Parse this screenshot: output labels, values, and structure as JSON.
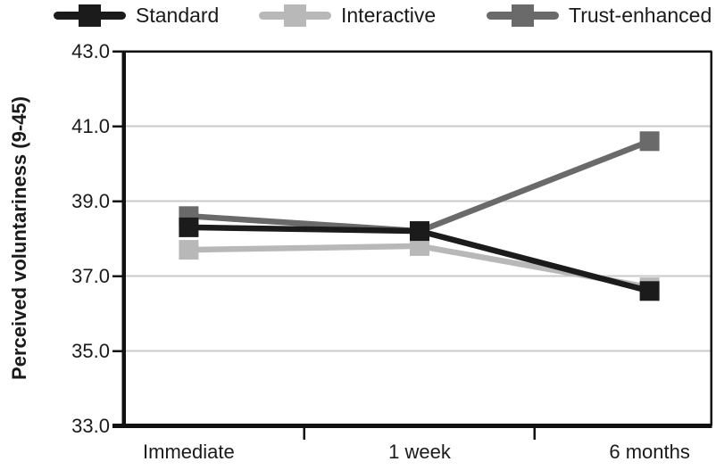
{
  "legend": {
    "items": [
      {
        "label": "Standard",
        "color": "#1b1b1b"
      },
      {
        "label": "Interactive",
        "color": "#b8b8b8"
      },
      {
        "label": "Trust-enhanced",
        "color": "#6a6a6a"
      }
    ]
  },
  "chart_data": {
    "type": "line",
    "title": "",
    "xlabel": "",
    "ylabel": "Perceived voluntariness (9-45)",
    "categories": [
      "Immediate",
      "1 week",
      "6 months"
    ],
    "ytick_labels": [
      "43.0",
      "41.0",
      "39.0",
      "37.0",
      "35.0",
      "33.0"
    ],
    "ylim": [
      33,
      43
    ],
    "grid": "horizontal-light-gray",
    "legend_position": "top",
    "marker": "square",
    "series": [
      {
        "name": "Standard",
        "color": "#1b1b1b",
        "values": [
          38.3,
          38.2,
          36.6
        ]
      },
      {
        "name": "Interactive",
        "color": "#b8b8b8",
        "values": [
          37.7,
          37.8,
          36.7
        ]
      },
      {
        "name": "Trust-enhanced",
        "color": "#6a6a6a",
        "values": [
          38.6,
          38.2,
          40.6
        ]
      }
    ],
    "colors": {
      "gridline": "#cacaca",
      "axis": "#111111",
      "text": "#1a1a1a"
    }
  }
}
